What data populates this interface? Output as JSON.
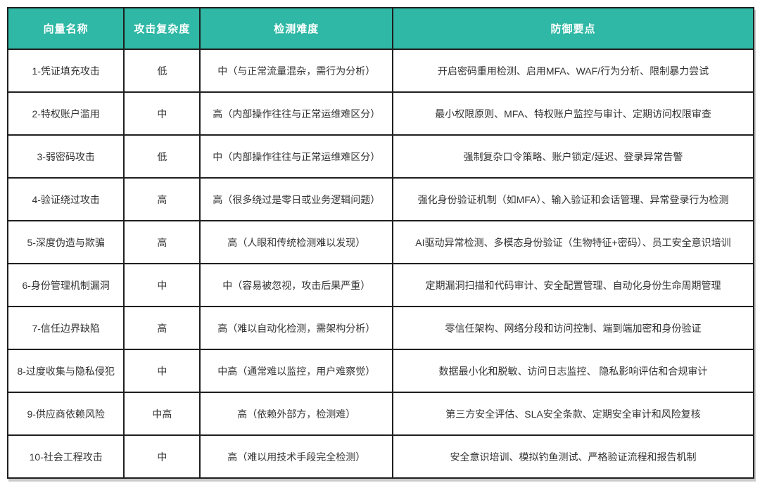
{
  "colors": {
    "header_bg": "#2eb8a5",
    "header_text": "#ffffff",
    "border": "#1f1f1f",
    "body_text": "#333333"
  },
  "table": {
    "columns": [
      "向量名称",
      "攻击复杂度",
      "检测难度",
      "防御要点"
    ],
    "rows": [
      {
        "name": "1-凭证填充攻击",
        "complexity": "低",
        "detection": "中（与正常流量混杂，需行为分析）",
        "defense": "开启密码重用检测、启用MFA、WAF/行为分析、限制暴力尝试"
      },
      {
        "name": "2-特权账户滥用",
        "complexity": "中",
        "detection": "高（内部操作往往与正常运维难区分）",
        "defense": "最小权限原则、MFA、特权账户监控与审计、定期访问权限审查"
      },
      {
        "name": "3-弱密码攻击",
        "complexity": "低",
        "detection": "中（内部操作往往与正常运维难区分）",
        "defense": "强制复杂口令策略、账户锁定/延迟、登录异常告警"
      },
      {
        "name": "4-验证绕过攻击",
        "complexity": "高",
        "detection": "高（很多绕过是零日或业务逻辑问题）",
        "defense": "强化身份验证机制（如MFA）、输入验证和会话管理、异常登录行为检测"
      },
      {
        "name": "5-深度伪造与欺骗",
        "complexity": "高",
        "detection": "高（人眼和传统检测难以发现）",
        "defense": "AI驱动异常检测、多模态身份验证（生物特征+密码）、员工安全意识培训"
      },
      {
        "name": "6-身份管理机制漏洞",
        "complexity": "中",
        "detection": "中（容易被忽视，攻击后果严重）",
        "defense": "定期漏洞扫描和代码审计、安全配置管理、自动化身份生命周期管理"
      },
      {
        "name": "7-信任边界缺陷",
        "complexity": "高",
        "detection": "高（难以自动化检测，需架构分析）",
        "defense": "零信任架构、网络分段和访问控制、端到端加密和身份验证"
      },
      {
        "name": "8-过度收集与隐私侵犯",
        "complexity": "中",
        "detection": "中高（通常难以监控，用户难察觉）",
        "defense": "数据最小化和脱敏、访问日志监控、 隐私影响评估和合规审计"
      },
      {
        "name": "9-供应商依赖风险",
        "complexity": "中高",
        "detection": "高（依赖外部方，检测难）",
        "defense": "第三方安全评估、SLA安全条款、定期安全审计和风险复核"
      },
      {
        "name": "10-社会工程攻击",
        "complexity": "中",
        "detection": "高（难以用技术手段完全检测）",
        "defense": "安全意识培训、模拟钓鱼测试、严格验证流程和报告机制"
      }
    ]
  }
}
